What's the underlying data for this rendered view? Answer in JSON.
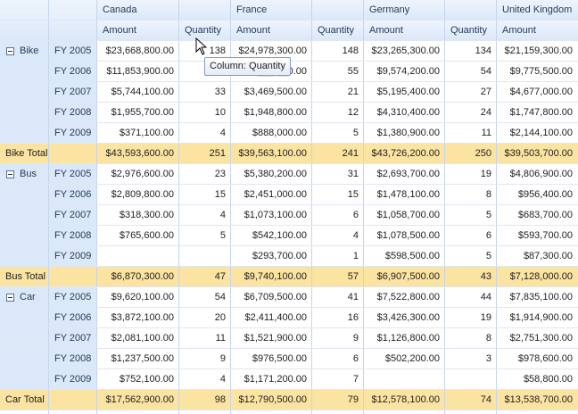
{
  "countries": [
    "Canada",
    "France",
    "Germany",
    "United Kingdom"
  ],
  "measure_labels": {
    "amount": "Amount",
    "quantity": "Quantity"
  },
  "tooltip": "Column: Quantity",
  "groups": [
    {
      "name": "Bike",
      "rows": [
        {
          "year": "FY 2005",
          "cells": [
            "$23,668,800.00",
            "138",
            "$24,978,300.00",
            "148",
            "$23,265,300.00",
            "134",
            "$21,159,300.00"
          ]
        },
        {
          "year": "FY 2006",
          "cells": [
            "$11,853,900.00",
            "",
            "$5,___,__0.00",
            "55",
            "$9,574,200.00",
            "54",
            "$9,775,500.00"
          ]
        },
        {
          "year": "FY 2007",
          "cells": [
            "$5,744,100.00",
            "33",
            "$3,469,500.00",
            "21",
            "$5,195,400.00",
            "27",
            "$4,677,000.00"
          ]
        },
        {
          "year": "FY 2008",
          "cells": [
            "$1,955,700.00",
            "10",
            "$1,948,800.00",
            "12",
            "$4,310,400.00",
            "24",
            "$1,747,800.00"
          ]
        },
        {
          "year": "FY 2009",
          "cells": [
            "$371,100.00",
            "4",
            "$888,000.00",
            "5",
            "$1,380,900.00",
            "11",
            "$2,144,100.00"
          ]
        }
      ],
      "total_label": "Bike Total",
      "total": [
        "$43,593,600.00",
        "251",
        "$39,563,100.00",
        "241",
        "$43,726,200.00",
        "250",
        "$39,503,700.00"
      ]
    },
    {
      "name": "Bus",
      "rows": [
        {
          "year": "FY 2005",
          "cells": [
            "$2,976,600.00",
            "23",
            "$5,380,200.00",
            "31",
            "$2,693,700.00",
            "19",
            "$4,806,900.00"
          ]
        },
        {
          "year": "FY 2006",
          "cells": [
            "$2,809,800.00",
            "15",
            "$2,451,000.00",
            "15",
            "$1,478,100.00",
            "8",
            "$956,400.00"
          ]
        },
        {
          "year": "FY 2007",
          "cells": [
            "$318,300.00",
            "4",
            "$1,073,100.00",
            "6",
            "$1,058,700.00",
            "5",
            "$683,700.00"
          ]
        },
        {
          "year": "FY 2008",
          "cells": [
            "$765,600.00",
            "5",
            "$542,100.00",
            "4",
            "$1,078,500.00",
            "6",
            "$593,700.00"
          ]
        },
        {
          "year": "FY 2009",
          "cells": [
            "",
            "",
            "$293,700.00",
            "1",
            "$598,500.00",
            "5",
            "$87,300.00"
          ]
        }
      ],
      "total_label": "Bus Total",
      "total": [
        "$6,870,300.00",
        "47",
        "$9,740,100.00",
        "57",
        "$6,907,500.00",
        "43",
        "$7,128,000.00"
      ]
    },
    {
      "name": "Car",
      "rows": [
        {
          "year": "FY 2005",
          "cells": [
            "$9,620,100.00",
            "54",
            "$6,709,500.00",
            "41",
            "$7,522,800.00",
            "44",
            "$7,835,100.00"
          ]
        },
        {
          "year": "FY 2006",
          "cells": [
            "$3,872,100.00",
            "20",
            "$2,411,400.00",
            "16",
            "$3,426,300.00",
            "19",
            "$1,914,900.00"
          ]
        },
        {
          "year": "FY 2007",
          "cells": [
            "$2,081,100.00",
            "11",
            "$1,521,900.00",
            "9",
            "$1,126,800.00",
            "8",
            "$2,751,300.00"
          ]
        },
        {
          "year": "FY 2008",
          "cells": [
            "$1,237,500.00",
            "9",
            "$976,500.00",
            "6",
            "$502,200.00",
            "3",
            "$978,600.00"
          ]
        },
        {
          "year": "FY 2009",
          "cells": [
            "$752,100.00",
            "4",
            "$1,171,200.00",
            "7",
            "",
            "",
            "$58,800.00"
          ]
        }
      ],
      "total_label": "Car Total",
      "total": [
        "$17,562,900.00",
        "98",
        "$12,790,500.00",
        "79",
        "$12,578,100.00",
        "74",
        "$13,538,700.00"
      ]
    }
  ]
}
